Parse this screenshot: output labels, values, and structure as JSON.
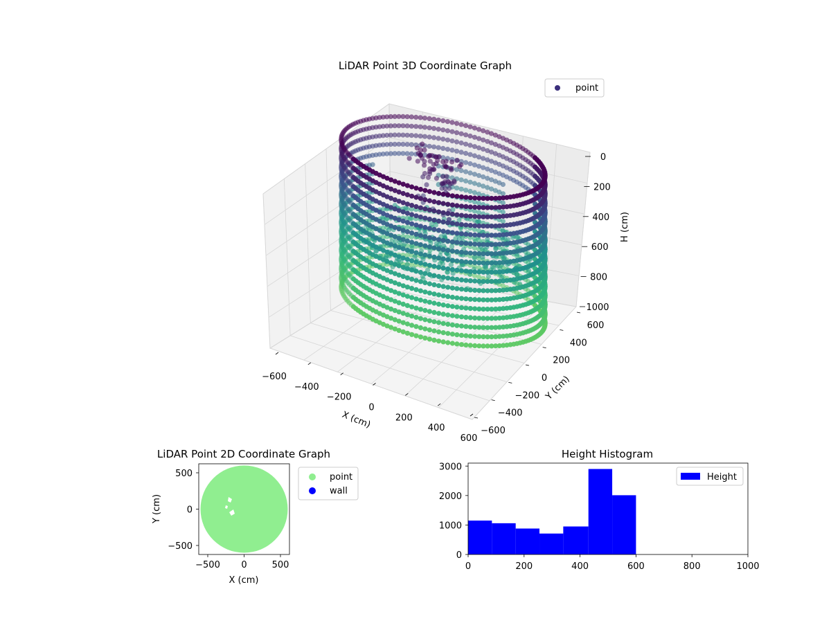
{
  "chart_data": [
    {
      "type": "scatter",
      "title": "LiDAR Point 3D Coordinate Graph",
      "xlabel": "X (cm)",
      "ylabel": "Y (cm)",
      "zlabel": "H (cm)",
      "xlim": [
        -600,
        600
      ],
      "ylim": [
        -600,
        600
      ],
      "zlim": [
        1000,
        0
      ],
      "x_ticks": [
        "−600",
        "−400",
        "−200",
        "0",
        "200",
        "400",
        "600"
      ],
      "y_ticks": [
        "−600",
        "−400",
        "−200",
        "0",
        "200",
        "400",
        "600"
      ],
      "z_ticks": [
        "0",
        "200",
        "400",
        "600",
        "800",
        "1000"
      ],
      "legend": [
        "point"
      ],
      "legend_position": "top-right",
      "colormap": [
        "#440154",
        "#3b528b",
        "#21918c",
        "#2fb47c",
        "#5ec962"
      ],
      "wall_radius": 600,
      "wall_height_range": [
        0,
        1000
      ],
      "center_cluster": {
        "x": [
          -200,
          100
        ],
        "y": [
          -100,
          100
        ],
        "h": [
          0,
          450
        ]
      },
      "grid": true
    },
    {
      "type": "scatter",
      "title": "LiDAR Point 2D Coordinate Graph",
      "xlabel": "X (cm)",
      "ylabel": "Y (cm)",
      "xlim": [
        -620,
        620
      ],
      "ylim": [
        -620,
        620
      ],
      "x_ticks": [
        "−500",
        "0",
        "500"
      ],
      "y_ticks": [
        "500",
        "0",
        "−500"
      ],
      "series": [
        {
          "name": "point",
          "color": "#90ee90",
          "shape": "disc",
          "center": [
            0,
            0
          ],
          "radius": 600
        },
        {
          "name": "wall",
          "color": "#0000ff",
          "values": []
        }
      ],
      "legend_position": "outside-right"
    },
    {
      "type": "bar",
      "title": "Height Histogram",
      "bin_edges": [
        0,
        85,
        170,
        255,
        340,
        430,
        515,
        600
      ],
      "values": [
        1150,
        1060,
        880,
        710,
        950,
        2900,
        2010
      ],
      "xlim": [
        0,
        1000
      ],
      "ylim": [
        0,
        3100
      ],
      "x_ticks": [
        "0",
        "200",
        "400",
        "600",
        "800",
        "1000"
      ],
      "y_ticks": [
        "0",
        "1000",
        "2000",
        "3000"
      ],
      "series": [
        {
          "name": "Height",
          "color": "#0000ff"
        }
      ],
      "legend_position": "top-right"
    }
  ]
}
